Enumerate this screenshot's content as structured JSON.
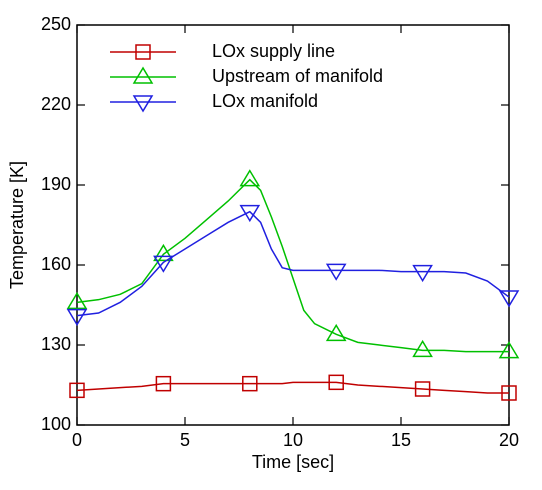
{
  "chart_data": {
    "type": "line",
    "x_label": "Time [sec]",
    "y_label": "Temperature [K]",
    "x": [
      0,
      1,
      2,
      3,
      4,
      5,
      6,
      7,
      8,
      8.5,
      9,
      9.5,
      10,
      10.5,
      11,
      12,
      13,
      14,
      15,
      16,
      17,
      18,
      19,
      20
    ],
    "series": [
      {
        "name": "LOx supply line",
        "color": "#c00000",
        "marker": "square",
        "values": [
          113,
          113.5,
          114,
          114.5,
          115.5,
          115.5,
          115.5,
          115.5,
          115.5,
          115.5,
          115.5,
          115.5,
          116,
          116,
          116,
          116,
          115,
          114.5,
          114,
          113.5,
          113,
          112.5,
          112,
          112
        ]
      },
      {
        "name": "Upstream of manifold",
        "color": "#00c000",
        "marker": "triangle-up",
        "values": [
          146,
          147,
          149,
          153,
          164,
          170,
          177,
          184,
          192,
          188,
          178,
          167,
          155,
          143,
          138,
          134,
          131,
          130,
          129,
          128,
          128,
          127.5,
          127.5,
          127.5
        ]
      },
      {
        "name": "LOx manifold",
        "color": "#2020e0",
        "marker": "triangle-down",
        "values": [
          141,
          142,
          146,
          152,
          161,
          166,
          171,
          176,
          180,
          176,
          166,
          159,
          158,
          158,
          158,
          158,
          158,
          158,
          157.5,
          157.5,
          157.5,
          157,
          154,
          148
        ]
      }
    ],
    "xlim": [
      0,
      20
    ],
    "xticks": [
      0,
      5,
      10,
      15,
      20
    ],
    "ylim": [
      100,
      250
    ],
    "yticks": [
      100,
      130,
      160,
      190,
      220,
      250
    ],
    "legend": "upper-left"
  }
}
